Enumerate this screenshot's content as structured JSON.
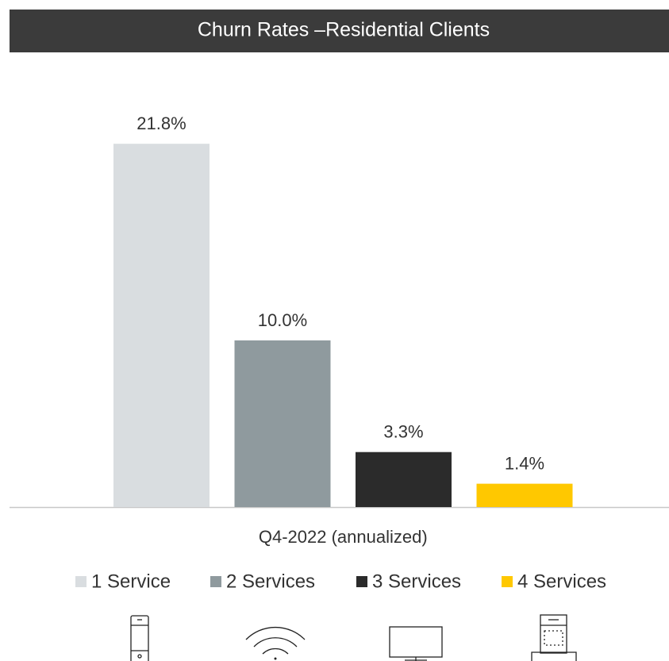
{
  "chart_data": {
    "type": "bar",
    "title": "Churn Rates –Residential Clients",
    "categories": [
      "Q4-2022 (annualized)"
    ],
    "ylim": [
      0,
      22
    ],
    "series": [
      {
        "name": "1 Service",
        "color": "#d9dde0",
        "values": [
          21.8
        ],
        "value_labels": [
          "21.8%"
        ]
      },
      {
        "name": "2 Services",
        "color": "#8f9a9e",
        "values": [
          10.0
        ],
        "value_labels": [
          "10.0%"
        ]
      },
      {
        "name": "3 Services",
        "color": "#2b2b2b",
        "values": [
          3.3
        ],
        "value_labels": [
          "3.3%"
        ]
      },
      {
        "name": "4 Services",
        "color": "#ffc800",
        "values": [
          1.4
        ],
        "value_labels": [
          "1.4%"
        ]
      }
    ]
  }
}
